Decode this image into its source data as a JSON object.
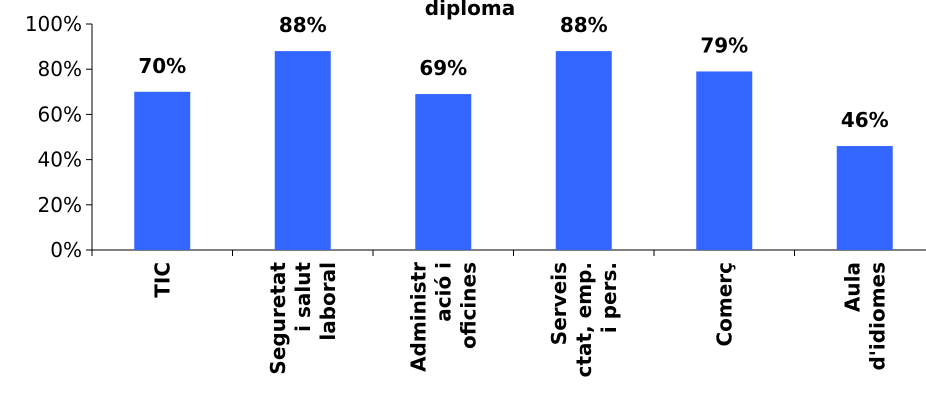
{
  "chart_data": {
    "type": "bar",
    "title": "diploma",
    "categories": [
      [
        "TIC"
      ],
      [
        "Seguretat",
        "i salut",
        "laboral"
      ],
      [
        "Administr",
        "ació i",
        "oficines"
      ],
      [
        "Serveis",
        "ctat, emp.",
        "i pers."
      ],
      [
        "Comerç"
      ],
      [
        "Aula",
        "d'idiomes"
      ]
    ],
    "values": [
      70,
      88,
      69,
      88,
      79,
      46
    ],
    "value_labels": [
      "70%",
      "88%",
      "69%",
      "88%",
      "79%",
      "46%"
    ],
    "yticks": [
      "0%",
      "20%",
      "40%",
      "60%",
      "80%",
      "100%"
    ],
    "ylim": [
      0,
      100
    ],
    "grid": false,
    "bar_color": "#3366FF"
  }
}
